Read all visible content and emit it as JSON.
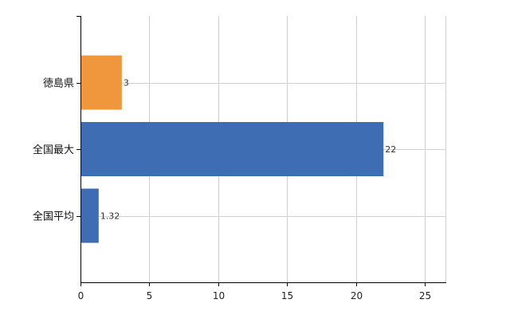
{
  "chart_data": {
    "type": "bar",
    "orientation": "horizontal",
    "categories": [
      "徳島県",
      "全国最大",
      "全国平均"
    ],
    "values": [
      3,
      22,
      1.32
    ],
    "value_labels": [
      "3",
      "22",
      "1.32"
    ],
    "bar_colors": [
      "#f0963c",
      "#3f6db3",
      "#3f6db3"
    ],
    "xlim": [
      0,
      26.5
    ],
    "xticks": [
      0,
      5,
      10,
      15,
      20,
      25
    ],
    "xtick_labels": [
      "0",
      "5",
      "10",
      "15",
      "20",
      "25"
    ],
    "grid": true,
    "legend": "none"
  }
}
